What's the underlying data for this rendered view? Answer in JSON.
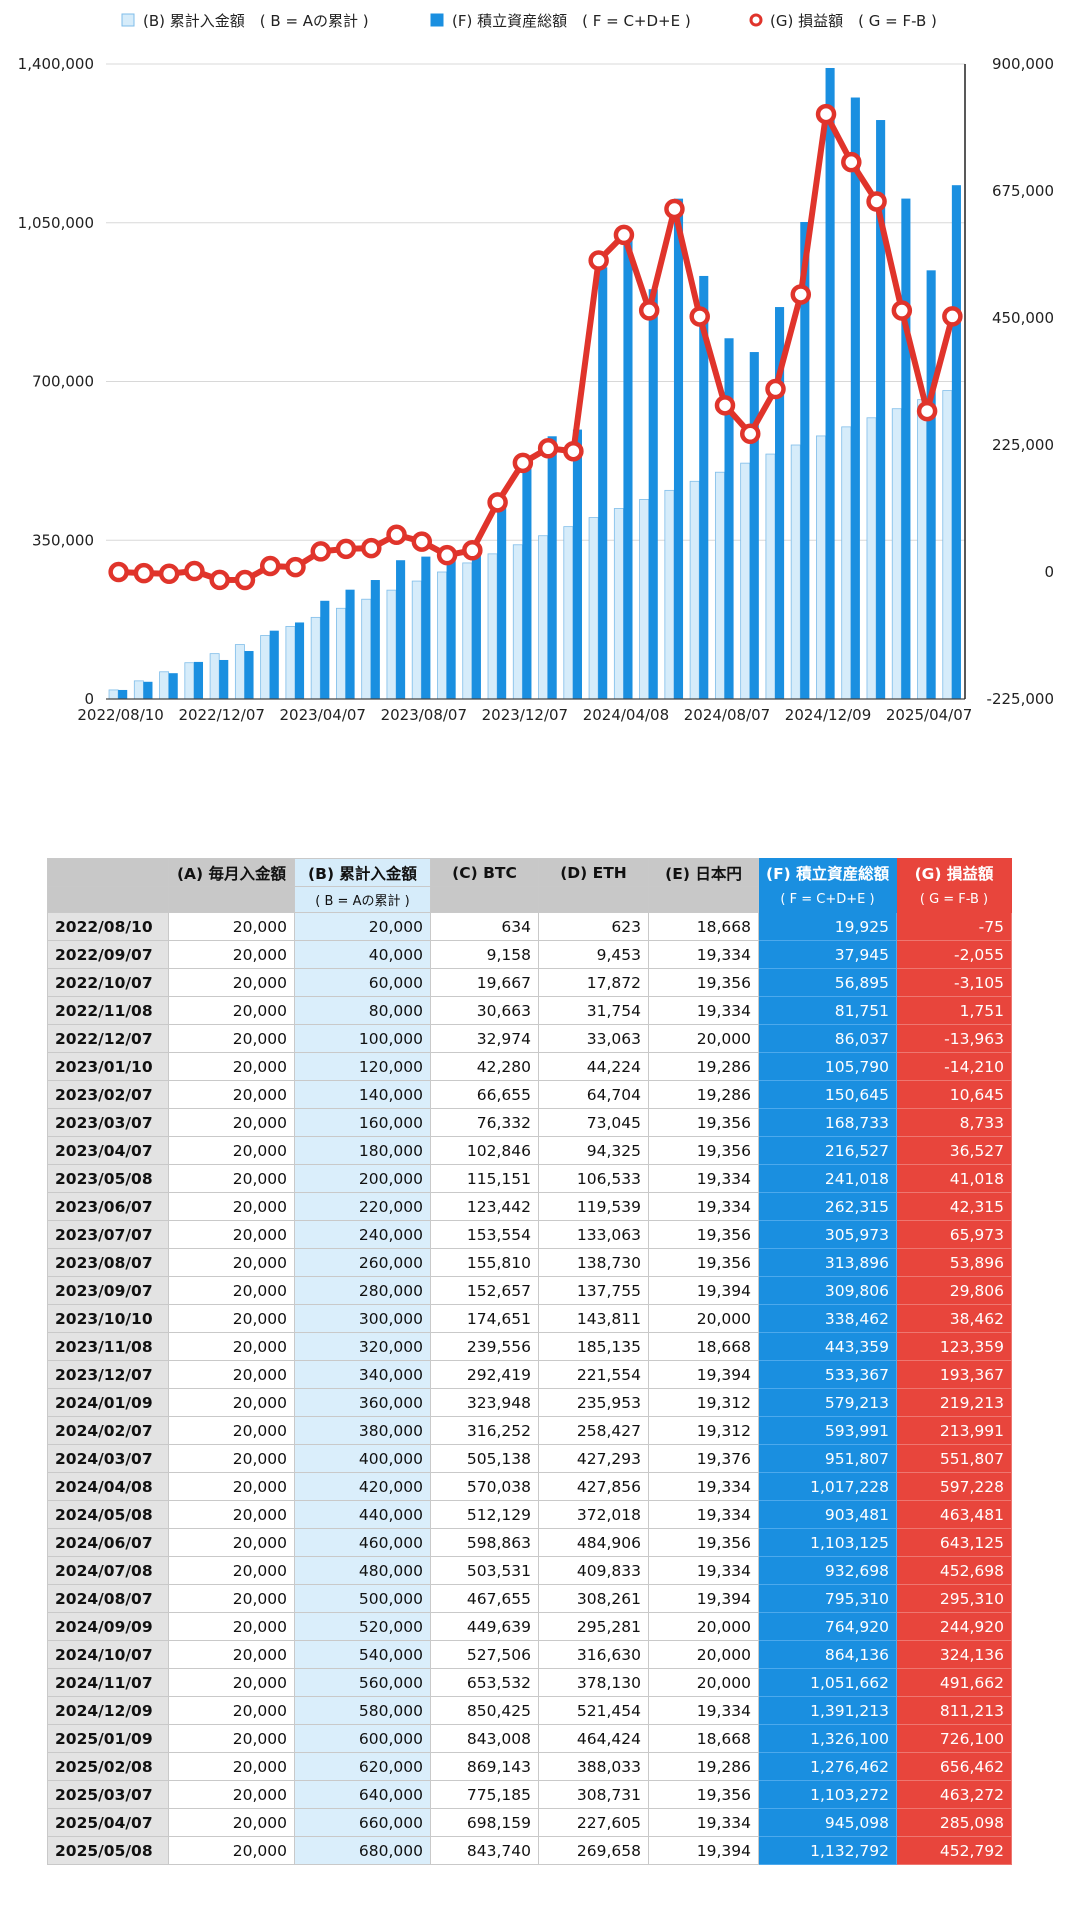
{
  "chart_data": {
    "type": "bar+line",
    "legend": [
      {
        "name": "(B) 累計入金額　( B = Aの累計 )",
        "color": "#d6ecfa"
      },
      {
        "name": "(F) 積立資産総額　( F = C+D+E )",
        "color": "#1a8fe0"
      },
      {
        "name": "(G) 損益額　( G = F-B )",
        "color": "#e0342b"
      }
    ],
    "legend_position": "top",
    "x_ticks": [
      "2022/08/10",
      "2022/12/07",
      "2023/04/07",
      "2023/08/07",
      "2023/12/07",
      "2024/04/08",
      "2024/08/07",
      "2024/12/09",
      "2025/04/07"
    ],
    "y_left_ticks": [
      "0",
      "350,000",
      "700,000",
      "1,050,000",
      "1,400,000"
    ],
    "y_right_ticks": [
      "-225,000",
      "0",
      "225,000",
      "450,000",
      "675,000",
      "900,000"
    ],
    "y_left_range": [
      0,
      1400000
    ],
    "y_right_range": [
      -225000,
      900000
    ],
    "categories": [
      "2022/08/10",
      "2022/09/07",
      "2022/10/07",
      "2022/11/08",
      "2022/12/07",
      "2023/01/10",
      "2023/02/07",
      "2023/03/07",
      "2023/04/07",
      "2023/05/08",
      "2023/06/07",
      "2023/07/07",
      "2023/08/07",
      "2023/09/07",
      "2023/10/10",
      "2023/11/08",
      "2023/12/07",
      "2024/01/09",
      "2024/02/07",
      "2024/03/07",
      "2024/04/08",
      "2024/05/08",
      "2024/06/07",
      "2024/07/08",
      "2024/08/07",
      "2024/09/09",
      "2024/10/07",
      "2024/11/07",
      "2024/12/09",
      "2025/01/09",
      "2025/02/08",
      "2025/03/07",
      "2025/04/07",
      "2025/05/08"
    ],
    "series": [
      {
        "name": "(B) 累計入金額　( B = Aの累計 )",
        "axis": "left",
        "kind": "bar",
        "color": "#d6ecfa",
        "values": [
          20000,
          40000,
          60000,
          80000,
          100000,
          120000,
          140000,
          160000,
          180000,
          200000,
          220000,
          240000,
          260000,
          280000,
          300000,
          320000,
          340000,
          360000,
          380000,
          400000,
          420000,
          440000,
          460000,
          480000,
          500000,
          520000,
          540000,
          560000,
          580000,
          600000,
          620000,
          640000,
          660000,
          680000
        ]
      },
      {
        "name": "(F) 積立資産総額　( F = C+D+E )",
        "axis": "left",
        "kind": "bar",
        "color": "#1a8fe0",
        "values": [
          19925,
          37945,
          56895,
          81751,
          86037,
          105790,
          150645,
          168733,
          216527,
          241018,
          262315,
          305973,
          313896,
          309806,
          338462,
          443359,
          533367,
          579213,
          593991,
          951807,
          1017228,
          903481,
          1103125,
          932698,
          795310,
          764920,
          864136,
          1051662,
          1391213,
          1326100,
          1276462,
          1103272,
          945098,
          1132792
        ]
      },
      {
        "name": "(G) 損益額　( G = F-B )",
        "axis": "right",
        "kind": "line",
        "color": "#e0342b",
        "values": [
          -75,
          -2055,
          -3105,
          1751,
          -13963,
          -14210,
          10645,
          8733,
          36527,
          41018,
          42315,
          65973,
          53896,
          29806,
          38462,
          123359,
          193367,
          219213,
          213991,
          551807,
          597228,
          463481,
          643125,
          452698,
          295310,
          244920,
          324136,
          491662,
          811213,
          726100,
          656462,
          463272,
          285098,
          452792
        ]
      }
    ]
  },
  "table": {
    "headers": [
      "",
      "(A) 毎月入金額",
      "(B) 累計入金額",
      "(C) BTC",
      "(D) ETH",
      "(E) 日本円",
      "(F) 積立資産総額",
      "(G) 損益額"
    ],
    "subheaders": [
      "",
      "",
      "( B = Aの累計 )",
      "",
      "",
      "",
      "( F = C+D+E )",
      "( G = F-B )"
    ],
    "rows": [
      [
        "2022/08/10",
        "20,000",
        "20,000",
        "634",
        "623",
        "18,668",
        "19,925",
        "-75"
      ],
      [
        "2022/09/07",
        "20,000",
        "40,000",
        "9,158",
        "9,453",
        "19,334",
        "37,945",
        "-2,055"
      ],
      [
        "2022/10/07",
        "20,000",
        "60,000",
        "19,667",
        "17,872",
        "19,356",
        "56,895",
        "-3,105"
      ],
      [
        "2022/11/08",
        "20,000",
        "80,000",
        "30,663",
        "31,754",
        "19,334",
        "81,751",
        "1,751"
      ],
      [
        "2022/12/07",
        "20,000",
        "100,000",
        "32,974",
        "33,063",
        "20,000",
        "86,037",
        "-13,963"
      ],
      [
        "2023/01/10",
        "20,000",
        "120,000",
        "42,280",
        "44,224",
        "19,286",
        "105,790",
        "-14,210"
      ],
      [
        "2023/02/07",
        "20,000",
        "140,000",
        "66,655",
        "64,704",
        "19,286",
        "150,645",
        "10,645"
      ],
      [
        "2023/03/07",
        "20,000",
        "160,000",
        "76,332",
        "73,045",
        "19,356",
        "168,733",
        "8,733"
      ],
      [
        "2023/04/07",
        "20,000",
        "180,000",
        "102,846",
        "94,325",
        "19,356",
        "216,527",
        "36,527"
      ],
      [
        "2023/05/08",
        "20,000",
        "200,000",
        "115,151",
        "106,533",
        "19,334",
        "241,018",
        "41,018"
      ],
      [
        "2023/06/07",
        "20,000",
        "220,000",
        "123,442",
        "119,539",
        "19,334",
        "262,315",
        "42,315"
      ],
      [
        "2023/07/07",
        "20,000",
        "240,000",
        "153,554",
        "133,063",
        "19,356",
        "305,973",
        "65,973"
      ],
      [
        "2023/08/07",
        "20,000",
        "260,000",
        "155,810",
        "138,730",
        "19,356",
        "313,896",
        "53,896"
      ],
      [
        "2023/09/07",
        "20,000",
        "280,000",
        "152,657",
        "137,755",
        "19,394",
        "309,806",
        "29,806"
      ],
      [
        "2023/10/10",
        "20,000",
        "300,000",
        "174,651",
        "143,811",
        "20,000",
        "338,462",
        "38,462"
      ],
      [
        "2023/11/08",
        "20,000",
        "320,000",
        "239,556",
        "185,135",
        "18,668",
        "443,359",
        "123,359"
      ],
      [
        "2023/12/07",
        "20,000",
        "340,000",
        "292,419",
        "221,554",
        "19,394",
        "533,367",
        "193,367"
      ],
      [
        "2024/01/09",
        "20,000",
        "360,000",
        "323,948",
        "235,953",
        "19,312",
        "579,213",
        "219,213"
      ],
      [
        "2024/02/07",
        "20,000",
        "380,000",
        "316,252",
        "258,427",
        "19,312",
        "593,991",
        "213,991"
      ],
      [
        "2024/03/07",
        "20,000",
        "400,000",
        "505,138",
        "427,293",
        "19,376",
        "951,807",
        "551,807"
      ],
      [
        "2024/04/08",
        "20,000",
        "420,000",
        "570,038",
        "427,856",
        "19,334",
        "1,017,228",
        "597,228"
      ],
      [
        "2024/05/08",
        "20,000",
        "440,000",
        "512,129",
        "372,018",
        "19,334",
        "903,481",
        "463,481"
      ],
      [
        "2024/06/07",
        "20,000",
        "460,000",
        "598,863",
        "484,906",
        "19,356",
        "1,103,125",
        "643,125"
      ],
      [
        "2024/07/08",
        "20,000",
        "480,000",
        "503,531",
        "409,833",
        "19,334",
        "932,698",
        "452,698"
      ],
      [
        "2024/08/07",
        "20,000",
        "500,000",
        "467,655",
        "308,261",
        "19,394",
        "795,310",
        "295,310"
      ],
      [
        "2024/09/09",
        "20,000",
        "520,000",
        "449,639",
        "295,281",
        "20,000",
        "764,920",
        "244,920"
      ],
      [
        "2024/10/07",
        "20,000",
        "540,000",
        "527,506",
        "316,630",
        "20,000",
        "864,136",
        "324,136"
      ],
      [
        "2024/11/07",
        "20,000",
        "560,000",
        "653,532",
        "378,130",
        "20,000",
        "1,051,662",
        "491,662"
      ],
      [
        "2024/12/09",
        "20,000",
        "580,000",
        "850,425",
        "521,454",
        "19,334",
        "1,391,213",
        "811,213"
      ],
      [
        "2025/01/09",
        "20,000",
        "600,000",
        "843,008",
        "464,424",
        "18,668",
        "1,326,100",
        "726,100"
      ],
      [
        "2025/02/08",
        "20,000",
        "620,000",
        "869,143",
        "388,033",
        "19,286",
        "1,276,462",
        "656,462"
      ],
      [
        "2025/03/07",
        "20,000",
        "640,000",
        "775,185",
        "308,731",
        "19,356",
        "1,103,272",
        "463,272"
      ],
      [
        "2025/04/07",
        "20,000",
        "660,000",
        "698,159",
        "227,605",
        "19,334",
        "945,098",
        "285,098"
      ],
      [
        "2025/05/08",
        "20,000",
        "680,000",
        "843,740",
        "269,658",
        "19,394",
        "1,132,792",
        "452,792"
      ]
    ]
  }
}
